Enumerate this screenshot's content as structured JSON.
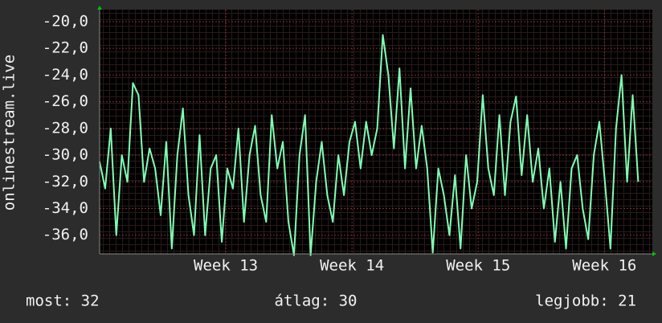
{
  "chart_data": {
    "type": "line",
    "y_label": "onlinestream.live",
    "x": [
      12.0,
      12.044,
      12.088,
      12.132,
      12.176,
      12.22,
      12.264,
      12.308,
      12.352,
      12.396,
      12.44,
      12.484,
      12.528,
      12.572,
      12.616,
      12.66,
      12.704,
      12.748,
      12.792,
      12.836,
      12.88,
      12.924,
      12.968,
      13.012,
      13.056,
      13.1,
      13.144,
      13.188,
      13.232,
      13.276,
      13.32,
      13.364,
      13.408,
      13.452,
      13.496,
      13.54,
      13.584,
      13.628,
      13.672,
      13.716,
      13.76,
      13.804,
      13.848,
      13.892,
      13.936,
      13.98,
      14.024,
      14.068,
      14.112,
      14.156,
      14.2,
      14.244,
      14.288,
      14.332,
      14.376,
      14.42,
      14.464,
      14.508,
      14.552,
      14.596,
      14.64,
      14.684,
      14.728,
      14.772,
      14.816,
      14.86,
      14.904,
      14.948,
      14.992,
      15.036,
      15.08,
      15.124,
      15.168,
      15.212,
      15.256,
      15.3,
      15.344,
      15.388,
      15.432,
      15.476,
      15.52,
      15.564,
      15.608,
      15.652,
      15.696,
      15.74,
      15.784,
      15.828,
      15.872,
      15.916,
      15.96,
      16.004,
      16.048,
      16.092,
      16.136,
      16.18,
      16.224,
      16.268
    ],
    "series": [
      {
        "color": "#80ffb4",
        "values": [
          -30.5,
          -32.5,
          -28,
          -36,
          -30,
          -32,
          -24.6,
          -25.5,
          -32,
          -29.5,
          -31,
          -34.5,
          -29,
          -37,
          -30,
          -26.5,
          -33,
          -36,
          -28.5,
          -36,
          -31,
          -30,
          -36.5,
          -31,
          -32.5,
          -28,
          -35,
          -30,
          -27.8,
          -33,
          -35,
          -27,
          -31,
          -29,
          -35,
          -37.5,
          -30,
          -27,
          -37.5,
          -32,
          -29,
          -33,
          -35,
          -30,
          -33,
          -29,
          -27.5,
          -31,
          -27.5,
          -30,
          -28,
          -21,
          -24,
          -29.5,
          -23.5,
          -31,
          -25,
          -31,
          -27.8,
          -31,
          -37.3,
          -31,
          -33,
          -36,
          -31.5,
          -37,
          -30,
          -34,
          -32,
          -25.5,
          -31,
          -33,
          -27,
          -33,
          -27.5,
          -25.6,
          -31.5,
          -27,
          -32,
          -29.5,
          -34,
          -31,
          -36.5,
          -32,
          -37,
          -31,
          -30,
          -34,
          -36.3,
          -30,
          -27.5,
          -32,
          -37,
          -28,
          -24,
          -32,
          -25.5,
          -32
        ]
      }
    ],
    "xlim": [
      12,
      16.38
    ],
    "ylim": [
      -37.4,
      -19.1
    ],
    "xticks": [
      {
        "value": 13,
        "label": "Week 13"
      },
      {
        "value": 14,
        "label": "Week 14"
      },
      {
        "value": 15,
        "label": "Week 15"
      },
      {
        "value": 16,
        "label": "Week 16"
      }
    ],
    "yticks": [
      {
        "value": -20,
        "label": "-20,0"
      },
      {
        "value": -22,
        "label": "-22,0"
      },
      {
        "value": -24,
        "label": "-24,0"
      },
      {
        "value": -26,
        "label": "-26,0"
      },
      {
        "value": -28,
        "label": "-28,0"
      },
      {
        "value": -30,
        "label": "-30,0"
      },
      {
        "value": -32,
        "label": "-32,0"
      },
      {
        "value": -34,
        "label": "-34,0"
      },
      {
        "value": -36,
        "label": "-36,0"
      }
    ],
    "grid": true,
    "annotations": [
      "most: 32",
      "átlag: 30",
      "legjobb: 21"
    ]
  }
}
